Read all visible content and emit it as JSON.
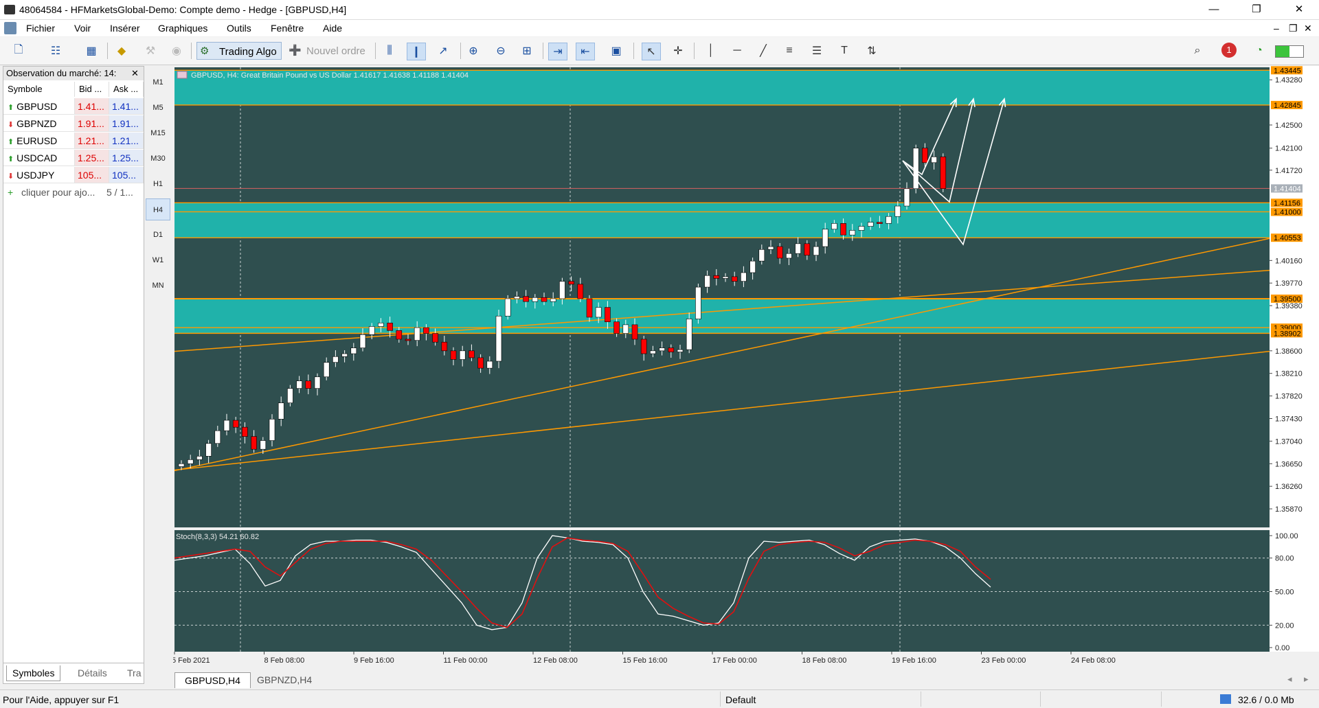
{
  "window": {
    "title": "48064584 - HFMarketsGlobal-Demo: Compte demo - Hedge - [GBPUSD,H4]",
    "minimize_glyph": "—",
    "restore_glyph": "❐",
    "close_glyph": "✕"
  },
  "menu": {
    "items": [
      "Fichier",
      "Voir",
      "Insérer",
      "Graphiques",
      "Outils",
      "Fenêtre",
      "Aide"
    ],
    "mdi_glyphs": [
      "–",
      "❐",
      "✕"
    ]
  },
  "toolbar": {
    "trading_algo": "Trading Algo",
    "new_order": "Nouvel ordre",
    "notification_count": "1",
    "icons": [
      "new-chart-icon",
      "profiles-icon",
      "market-watch-icon",
      "gold-icon",
      "tools-icon",
      "signal-icon",
      "algo-icon",
      "order-icon",
      "bar-chart-icon",
      "candles-icon",
      "line-chart-icon",
      "zoom-in-icon",
      "zoom-out-icon",
      "tile-icon",
      "autoscroll-icon",
      "chart-shift-icon",
      "templates-icon",
      "cursor-icon",
      "crosshair-icon",
      "vertical-line-icon",
      "horizontal-line-icon",
      "trendline-icon",
      "fibonacci-icon",
      "channel-icon",
      "text-icon",
      "arrows-icon",
      "search-icon",
      "notifications-icon",
      "signal-strength-icon",
      "connection-icon"
    ]
  },
  "market_watch": {
    "title": "Observation du marché: 14:",
    "close_glyph": "✕",
    "headers": [
      "Symbole",
      "Bid ...",
      "Ask ..."
    ],
    "rows": [
      {
        "symbol": "GBPUSD",
        "bid": "1.41...",
        "ask": "1.41...",
        "direction": "up"
      },
      {
        "symbol": "GBPNZD",
        "bid": "1.91...",
        "ask": "1.91...",
        "direction": "down"
      },
      {
        "symbol": "EURUSD",
        "bid": "1.21...",
        "ask": "1.21...",
        "direction": "up"
      },
      {
        "symbol": "USDCAD",
        "bid": "1.25...",
        "ask": "1.25...",
        "direction": "up"
      },
      {
        "symbol": "USDJPY",
        "bid": "105...",
        "ask": "105...",
        "direction": "down"
      }
    ],
    "add_symbol": "cliquer pour ajo...",
    "count": "5 / 1...",
    "tabs": [
      "Symboles",
      "Détails",
      "Tra"
    ]
  },
  "timeframes": [
    "M1",
    "M5",
    "M15",
    "M30",
    "H1",
    "H4",
    "D1",
    "W1",
    "MN"
  ],
  "active_timeframe": "H4",
  "chart": {
    "header": "GBPUSD, H4:  Great Britain Pound vs US Dollar  1.41617 1.41638 1.41188 1.41404",
    "colors": {
      "background": "#2f4f4f",
      "zone": "#20b2aa",
      "level": "#ff9900",
      "bull": "#ffffff",
      "bear": "#ff0000"
    },
    "price_labels": [
      "1.43280",
      "1.42500",
      "1.42100",
      "1.41720",
      "1.40160",
      "1.39770",
      "1.39380",
      "1.38600",
      "1.38210",
      "1.37820",
      "1.37430",
      "1.37040",
      "1.36650",
      "1.36260",
      "1.35870"
    ],
    "level_labels": [
      "1.43445",
      "1.42845",
      "1.41156",
      "1.41000",
      "1.40553",
      "1.39500",
      "1.39000",
      "1.38902"
    ],
    "current_price": "1.41404",
    "time_labels": [
      "5 Feb 2021",
      "8 Feb 08:00",
      "9 Feb 16:00",
      "11 Feb 00:00",
      "12 Feb 08:00",
      "15 Feb 16:00",
      "17 Feb 00:00",
      "18 Feb 08:00",
      "19 Feb 16:00",
      "23 Feb 00:00",
      "24 Feb 08:00"
    ],
    "stoch_header": "Stoch(8,3,3) 54.21 60.82",
    "stoch_labels": [
      "100.00",
      "80.00",
      "50.00",
      "20.00",
      "0.00"
    ]
  },
  "chart_data": {
    "type": "candlestick",
    "symbol": "GBPUSD",
    "timeframe": "H4",
    "ohlc_last": {
      "open": 1.41617,
      "high": 1.41638,
      "low": 1.41188,
      "close": 1.41404
    },
    "closes": [
      1.3665,
      1.3672,
      1.3678,
      1.37,
      1.3722,
      1.374,
      1.3728,
      1.3712,
      1.369,
      1.3705,
      1.3742,
      1.377,
      1.3795,
      1.3808,
      1.3795,
      1.3815,
      1.384,
      1.385,
      1.3855,
      1.3865,
      1.3888,
      1.3902,
      1.3908,
      1.3895,
      1.388,
      1.3878,
      1.39,
      1.389,
      1.3875,
      1.386,
      1.3845,
      1.386,
      1.3848,
      1.383,
      1.3842,
      1.392,
      1.395,
      1.3954,
      1.3945,
      1.3952,
      1.3945,
      1.395,
      1.398,
      1.3975,
      1.395,
      1.3918,
      1.3935,
      1.391,
      1.389,
      1.3905,
      1.388,
      1.3855,
      1.386,
      1.3865,
      1.3858,
      1.3862,
      1.3915,
      1.397,
      1.399,
      1.3985,
      1.3988,
      1.398,
      1.3995,
      1.4015,
      1.4035,
      1.404,
      1.402,
      1.4028,
      1.4045,
      1.4025,
      1.404,
      1.407,
      1.408,
      1.406,
      1.4068,
      1.4075,
      1.4082,
      1.408,
      1.4092,
      1.411,
      1.414,
      1.421,
      1.4185,
      1.4195,
      1.414
    ],
    "stoch_main": [
      78,
      80,
      82,
      85,
      88,
      75,
      55,
      60,
      82,
      92,
      95,
      95,
      96,
      96,
      94,
      90,
      85,
      70,
      55,
      40,
      20,
      16,
      18,
      40,
      80,
      100,
      98,
      95,
      94,
      92,
      80,
      50,
      30,
      28,
      24,
      20,
      22,
      40,
      80,
      95,
      94,
      95,
      96,
      92,
      84,
      78,
      90,
      95,
      96,
      97,
      95,
      90,
      80,
      66,
      54
    ],
    "stoch_signal": [
      80,
      82,
      84,
      86,
      88,
      86,
      72,
      64,
      76,
      88,
      93,
      95,
      95,
      95,
      95,
      92,
      88,
      78,
      64,
      50,
      35,
      22,
      18,
      30,
      62,
      90,
      98,
      96,
      95,
      93,
      86,
      66,
      45,
      35,
      28,
      22,
      21,
      32,
      62,
      86,
      92,
      94,
      95,
      94,
      89,
      82,
      86,
      92,
      94,
      96,
      95,
      92,
      86,
      72,
      61
    ],
    "stoch_ylim": [
      0,
      100
    ]
  },
  "chart_tabs": [
    "GBPUSD,H4",
    "GBPNZD,H4"
  ],
  "status": {
    "help": "Pour l'Aide, appuyer sur F1",
    "profile": "Default",
    "traffic": "32.6 / 0.0 Mb"
  }
}
